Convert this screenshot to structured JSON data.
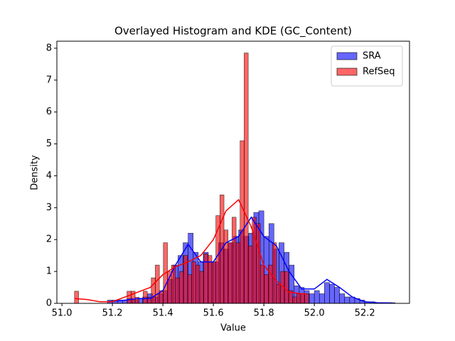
{
  "chart_data": {
    "type": "histogram",
    "title": "Overlayed Histogram and KDE (GC_Content)",
    "xlabel": "Value",
    "ylabel": "Density",
    "xlim": [
      50.98,
      52.377
    ],
    "ylim": [
      0,
      8.22
    ],
    "xticks": [
      {
        "value": 51,
        "label": "51.0"
      },
      51.2,
      51.4,
      51.6,
      51.8,
      {
        "value": 52,
        "label": "52.0"
      },
      52.2
    ],
    "yticks": [
      0,
      1,
      2,
      3,
      4,
      5,
      6,
      7,
      8
    ],
    "legend": "upper right",
    "series": [
      {
        "name": "SRA",
        "color": "#0000ff",
        "bins": [
          51.18,
          51.2,
          51.22,
          51.24,
          51.26,
          51.28,
          51.3,
          51.32,
          51.34,
          51.36,
          51.38,
          51.4,
          51.42,
          51.44,
          51.46,
          51.48,
          51.5,
          51.52,
          51.54,
          51.56,
          51.58,
          51.6,
          51.62,
          51.64,
          51.66,
          51.68,
          51.7,
          51.72,
          51.74,
          51.76,
          51.78,
          51.8,
          51.82,
          51.84,
          51.86,
          51.88,
          51.9,
          51.92,
          51.94,
          51.96,
          51.98,
          52.0,
          52.02,
          52.04,
          52.06,
          52.08,
          52.1,
          52.12,
          52.14,
          52.16,
          52.18,
          52.2,
          52.22,
          52.24,
          52.26,
          52.28,
          52.3,
          52.32
        ],
        "values": [
          0.1,
          0.1,
          0.1,
          0.1,
          0.15,
          0.1,
          0.15,
          0.2,
          0.3,
          0.2,
          0.3,
          0.4,
          0.75,
          1.2,
          1.5,
          1.9,
          2.2,
          1.6,
          1.3,
          1.6,
          1.3,
          1.3,
          1.9,
          1.7,
          1.9,
          2.1,
          2.3,
          2.1,
          2.2,
          2.85,
          2.9,
          2.1,
          2.5,
          1.7,
          1.9,
          1.6,
          1.2,
          0.55,
          0.5,
          0.4,
          0.3,
          0.4,
          0.3,
          0.65,
          0.6,
          0.5,
          0.3,
          0.2,
          0.2,
          0.15,
          0.1,
          0.05,
          0.05,
          0.02,
          0.02,
          0.02,
          0.02
        ],
        "kde": {
          "x": [
            51.18,
            51.25,
            51.3,
            51.35,
            51.4,
            51.45,
            51.5,
            51.55,
            51.6,
            51.65,
            51.7,
            51.75,
            51.8,
            51.85,
            51.9,
            51.95,
            52.0,
            52.05,
            52.1,
            52.15,
            52.2,
            52.25,
            52.31
          ],
          "y": [
            0.05,
            0.1,
            0.15,
            0.15,
            0.4,
            1.2,
            1.85,
            1.3,
            1.3,
            1.9,
            2.1,
            2.7,
            2.1,
            1.8,
            1.0,
            0.45,
            0.45,
            0.75,
            0.5,
            0.2,
            0.05,
            0.02,
            0.01
          ]
        }
      },
      {
        "name": "RefSeq",
        "color": "#ff0000",
        "bins": [
          51.05,
          51.066,
          51.082,
          51.098,
          51.114,
          51.13,
          51.146,
          51.162,
          51.178,
          51.194,
          51.21,
          51.226,
          51.242,
          51.258,
          51.274,
          51.29,
          51.306,
          51.322,
          51.338,
          51.354,
          51.37,
          51.386,
          51.402,
          51.418,
          51.434,
          51.45,
          51.466,
          51.482,
          51.498,
          51.514,
          51.53,
          51.546,
          51.562,
          51.578,
          51.594,
          51.61,
          51.626,
          51.642,
          51.658,
          51.674,
          51.69,
          51.706,
          51.722,
          51.738,
          51.754,
          51.77,
          51.786,
          51.802,
          51.818,
          51.834,
          51.85,
          51.866,
          51.882,
          51.898,
          51.914,
          51.93,
          51.946,
          51.962,
          51.978
        ],
        "values": [
          0.38,
          0,
          0,
          0,
          0,
          0,
          0,
          0,
          0,
          0,
          0,
          0,
          0,
          0.38,
          0.38,
          0.19,
          0,
          0.38,
          0.19,
          0.8,
          1.2,
          0.4,
          1.9,
          1.0,
          1.2,
          0.8,
          1.0,
          1.5,
          0.9,
          1.3,
          1.2,
          1.0,
          1.55,
          1.5,
          1.3,
          2.75,
          3.4,
          2.3,
          1.9,
          2.7,
          1.9,
          5.1,
          7.85,
          1.8,
          2.7,
          2.5,
          1.2,
          0.9,
          1.2,
          1.9,
          0.6,
          1.0,
          1.0,
          0.4,
          0.2,
          0.3,
          0.3,
          0.3
        ],
        "kde": {
          "x": [
            51.05,
            51.1,
            51.15,
            51.2,
            51.25,
            51.3,
            51.35,
            51.4,
            51.45,
            51.5,
            51.55,
            51.6,
            51.65,
            51.7,
            51.75,
            51.8,
            51.85,
            51.9,
            51.95,
            51.97
          ],
          "y": [
            0.15,
            0.12,
            0.05,
            0.05,
            0.2,
            0.35,
            0.5,
            0.9,
            1.15,
            1.3,
            1.5,
            2.0,
            2.9,
            3.25,
            2.4,
            1.2,
            0.7,
            0.35,
            0.3,
            0.3
          ]
        }
      }
    ]
  }
}
